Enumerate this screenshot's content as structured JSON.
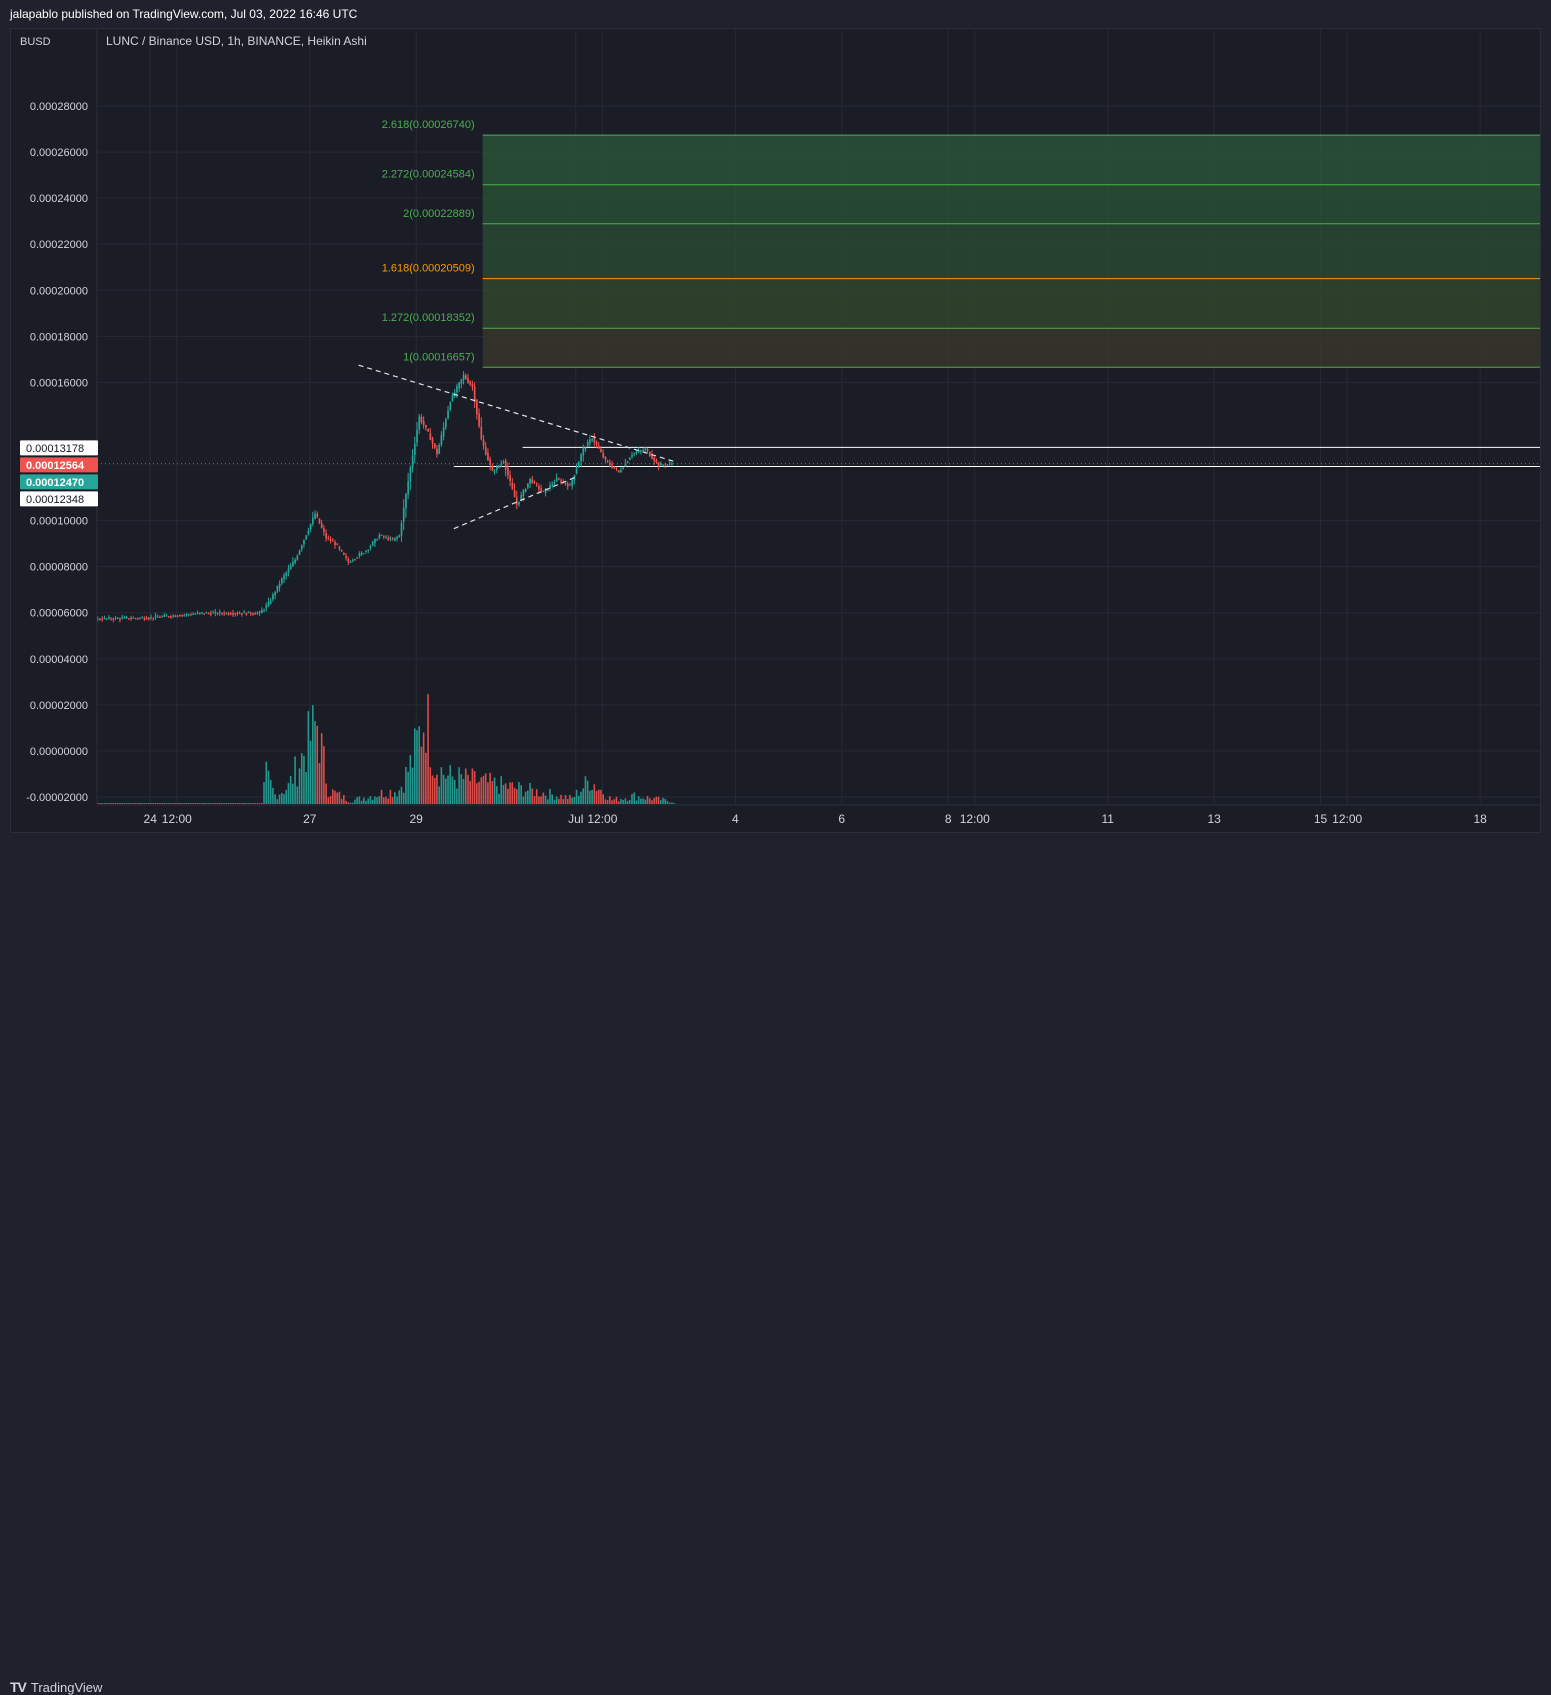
{
  "header": {
    "publisher": "jalapablo published on TradingView.com, Jul 03, 2022 16:46 UTC"
  },
  "chart_header": {
    "currency": "BUSD",
    "symbol_line": "LUNC / Binance USD, 1h, BINANCE, Heikin Ashi"
  },
  "footer": {
    "logo_text": "TradingView",
    "logo_mark": "TV"
  },
  "price_tags": [
    {
      "label": "0.00013178",
      "value": 0.00013178,
      "bg": "#ffffff",
      "fg": "#131722"
    },
    {
      "label": "0.00012564",
      "value": 0.00012564,
      "bg": "#ef5350",
      "fg": "#ffffff"
    },
    {
      "label": "0.00012470",
      "value": 0.0001247,
      "bg": "#26a69a",
      "fg": "#ffffff"
    },
    {
      "label": "0.00012348",
      "value": 0.00012348,
      "bg": "#ffffff",
      "fg": "#131722"
    }
  ],
  "chart_data": {
    "type": "candlestick",
    "style": "Heikin Ashi",
    "yticks": [
      "0.00028000",
      "0.00026000",
      "0.00024000",
      "0.00022000",
      "0.00020000",
      "0.00018000",
      "0.00016000",
      "0.00010000",
      "0.00008000",
      "0.00006000",
      "0.00004000",
      "0.00002000",
      "0.00000000",
      "-0.00002000"
    ],
    "ytick_values": [
      0.00028,
      0.00026,
      0.00024,
      0.00022,
      0.0002,
      0.00018,
      0.00016,
      0.0001,
      8e-05,
      6e-05,
      4e-05,
      2e-05,
      0.0,
      -2e-05
    ],
    "ylim": [
      -2.35e-05,
      0.0003
    ],
    "xticks": [
      "24",
      "12:00",
      "27",
      "29",
      "Jul",
      "12:00",
      "4",
      "6",
      "8",
      "12:00",
      "11",
      "13",
      "15",
      "12:00",
      "18"
    ],
    "xtick_hours": [
      0,
      12,
      72,
      120,
      192,
      204,
      264,
      312,
      360,
      372,
      432,
      480,
      528,
      540,
      600
    ],
    "x_start_hour": -24,
    "x_end_hour": 627,
    "grid": true,
    "fib_extension": {
      "levels": [
        {
          "label": "2.618(0.00026740)",
          "ratio": 2.618,
          "price": 0.0002674,
          "color": "#4caf50"
        },
        {
          "label": "2.272(0.00024584)",
          "ratio": 2.272,
          "price": 0.00024584,
          "color": "#4caf50"
        },
        {
          "label": "2(0.00022889)",
          "ratio": 2,
          "price": 0.00022889,
          "color": "#4caf50"
        },
        {
          "label": "1.618(0.00020509)",
          "ratio": 1.618,
          "price": 0.00020509,
          "color": "#ff9800"
        },
        {
          "label": "1.272(0.00018352)",
          "ratio": 1.272,
          "price": 0.00018352,
          "color": "#4caf50"
        },
        {
          "label": "1(0.00016657)",
          "ratio": 1,
          "price": 0.00016657,
          "color": "#4caf50"
        }
      ],
      "start_hour": 150
    },
    "horizontal_lines": [
      {
        "price": 0.00013178,
        "from_hour": 168,
        "color": "#ffffff"
      },
      {
        "price": 0.00012348,
        "from_hour": 137,
        "color": "#ffffff"
      }
    ],
    "last_price_line": {
      "price": 0.0001247,
      "color": "#26a69a"
    },
    "triangle_lines": [
      {
        "from_hour": 94,
        "from_price": 0.0001675,
        "to_hour": 236,
        "to_price": 0.0001258
      },
      {
        "from_hour": 137,
        "from_price": 9.65e-05,
        "to_hour": 193,
        "to_price": 0.0001193
      }
    ],
    "price_path": [
      {
        "hour": -24,
        "price": 5.73e-05
      },
      {
        "hour": 0,
        "price": 5.78e-05
      },
      {
        "hour": 24,
        "price": 5.98e-05
      },
      {
        "hour": 50,
        "price": 5.98e-05
      },
      {
        "hour": 54,
        "price": 6.4e-05
      },
      {
        "hour": 60,
        "price": 7.45e-05
      },
      {
        "hour": 66,
        "price": 8.3e-05
      },
      {
        "hour": 75,
        "price": 0.000103
      },
      {
        "hour": 80,
        "price": 9.25e-05
      },
      {
        "hour": 84,
        "price": 9e-05
      },
      {
        "hour": 90,
        "price": 8.2e-05
      },
      {
        "hour": 98,
        "price": 8.7e-05
      },
      {
        "hour": 104,
        "price": 9.35e-05
      },
      {
        "hour": 110,
        "price": 9.15e-05
      },
      {
        "hour": 113,
        "price": 9.35e-05
      },
      {
        "hour": 118,
        "price": 0.000123
      },
      {
        "hour": 122,
        "price": 0.000145
      },
      {
        "hour": 126,
        "price": 0.000138
      },
      {
        "hour": 130,
        "price": 0.000129
      },
      {
        "hour": 136,
        "price": 0.000152
      },
      {
        "hour": 142,
        "price": 0.000163
      },
      {
        "hour": 146,
        "price": 0.000158
      },
      {
        "hour": 150,
        "price": 0.000135
      },
      {
        "hour": 155,
        "price": 0.000121
      },
      {
        "hour": 160,
        "price": 0.000126
      },
      {
        "hour": 166,
        "price": 0.000107
      },
      {
        "hour": 172,
        "price": 0.000118
      },
      {
        "hour": 178,
        "price": 0.000112
      },
      {
        "hour": 184,
        "price": 0.000118
      },
      {
        "hour": 190,
        "price": 0.000115
      },
      {
        "hour": 196,
        "price": 0.000131
      },
      {
        "hour": 200,
        "price": 0.000136
      },
      {
        "hour": 206,
        "price": 0.000126
      },
      {
        "hour": 212,
        "price": 0.000121
      },
      {
        "hour": 218,
        "price": 0.000129
      },
      {
        "hour": 224,
        "price": 0.000131
      },
      {
        "hour": 230,
        "price": 0.000124
      },
      {
        "hour": 236,
        "price": 0.0001247
      }
    ],
    "volume_path": [
      {
        "hour": -24,
        "volume": 3e-07
      },
      {
        "hour": 50,
        "volume": 5e-07
      },
      {
        "hour": 52,
        "volume": 1.8e-05
      },
      {
        "hour": 56,
        "volume": 6e-06
      },
      {
        "hour": 62,
        "volume": 1.1e-05
      },
      {
        "hour": 75,
        "volume": 4.9e-05
      },
      {
        "hour": 80,
        "volume": 9e-06
      },
      {
        "hour": 90,
        "volume": 2.5e-06
      },
      {
        "hour": 104,
        "volume": 7e-06
      },
      {
        "hour": 112,
        "volume": 9e-06
      },
      {
        "hour": 118,
        "volume": 2.7e-05
      },
      {
        "hour": 124,
        "volume": 5.55e-05
      },
      {
        "hour": 128,
        "volume": 2.4e-05
      },
      {
        "hour": 134,
        "volume": 1.7e-05
      },
      {
        "hour": 144,
        "volume": 1.5e-05
      },
      {
        "hour": 156,
        "volume": 1.2e-05
      },
      {
        "hour": 170,
        "volume": 9e-06
      },
      {
        "hour": 190,
        "volume": 4e-06
      },
      {
        "hour": 198,
        "volume": 1.5e-05
      },
      {
        "hour": 208,
        "volume": 3e-06
      },
      {
        "hour": 218,
        "volume": 5.5e-06
      },
      {
        "hour": 236,
        "volume": 2e-06
      }
    ]
  }
}
